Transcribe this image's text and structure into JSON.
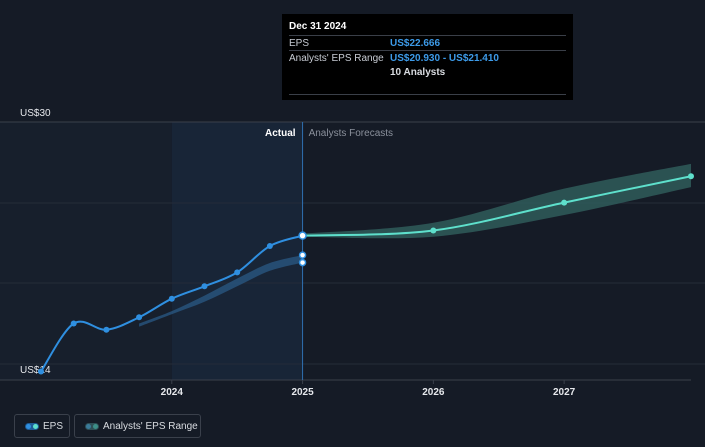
{
  "tooltip": {
    "date": "Dec 31 2024",
    "eps_label": "EPS",
    "eps_value": "US$22.666",
    "range_label": "Analysts' EPS Range",
    "range_value": "US$20.930 - US$21.410",
    "analysts": "10 Analysts"
  },
  "legend": {
    "eps_label": "EPS",
    "range_label": "Analysts' EPS Range"
  },
  "colors": {
    "background": "#151b26",
    "actual_shade": "#1b2d45",
    "eps_line": "#2f8fe0",
    "forecast_line": "#5ee0cc",
    "forecast_band": "#2f5c5a",
    "tooltip_value": "#3d9be9"
  },
  "chart_data": {
    "type": "line",
    "title": "",
    "xlabel": "",
    "ylabel": "",
    "y_top_label": "US$30",
    "y_bottom_label": "US$14",
    "ylim": [
      14,
      30
    ],
    "xlim": [
      2023.0,
      2027.97
    ],
    "x_ticks": [
      {
        "label": "2024",
        "x": 2024.0
      },
      {
        "label": "2025",
        "x": 2025.0
      },
      {
        "label": "2026",
        "x": 2026.0
      },
      {
        "label": "2027",
        "x": 2027.0
      }
    ],
    "actual_label": "Actual",
    "forecast_label": "Analysts Forecasts",
    "highlight_start": 2024.0,
    "divider_x": 2025.0,
    "series": [
      {
        "name": "EPS",
        "points": [
          [
            2023.0,
            13.9
          ],
          [
            2023.25,
            17.0
          ],
          [
            2023.5,
            16.6
          ],
          [
            2023.75,
            17.4
          ],
          [
            2024.0,
            18.6
          ],
          [
            2024.25,
            19.4
          ],
          [
            2024.5,
            20.3
          ],
          [
            2024.75,
            22.0
          ],
          [
            2025.0,
            22.666
          ]
        ]
      },
      {
        "name": "EPS Forecast",
        "points": [
          [
            2025.0,
            22.666
          ],
          [
            2026.0,
            23.0
          ],
          [
            2027.0,
            24.8
          ],
          [
            2027.97,
            26.5
          ]
        ]
      }
    ],
    "forecast_band": {
      "name": "Analysts' EPS Range",
      "x": [
        2025.0,
        2026.0,
        2027.0,
        2027.97
      ],
      "low": [
        22.6,
        22.6,
        24.0,
        25.8
      ],
      "high": [
        22.8,
        23.5,
        25.7,
        27.3
      ]
    },
    "past_band": {
      "x": [
        2023.75,
        2024.0,
        2024.25,
        2024.5,
        2024.75,
        2025.0
      ],
      "low": [
        16.8,
        17.6,
        18.4,
        19.4,
        20.4,
        20.93
      ],
      "high": [
        17.0,
        17.8,
        18.8,
        19.9,
        20.9,
        21.41
      ]
    },
    "range_markers": [
      [
        2025.0,
        20.93
      ],
      [
        2025.0,
        21.41
      ]
    ]
  }
}
